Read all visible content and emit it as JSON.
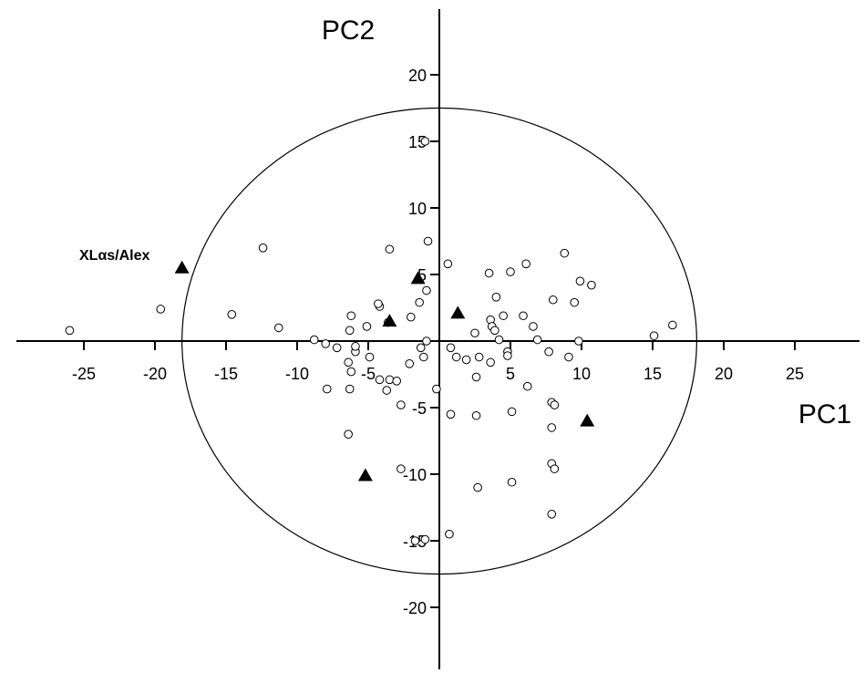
{
  "chart_data": {
    "type": "scatter",
    "xlabel": "PC1",
    "ylabel": "PC2",
    "xlim": [
      -30,
      30
    ],
    "ylim": [
      -25,
      25
    ],
    "x_ticks": [
      -25,
      -20,
      -15,
      -10,
      -5,
      0,
      5,
      10,
      15,
      20,
      25
    ],
    "y_ticks": [
      -20,
      -15,
      -10,
      -5,
      0,
      5,
      10,
      15,
      20
    ],
    "x_tick_labels": [
      "-25",
      "-20",
      "-15",
      "-10",
      "-5",
      "",
      "5",
      "10",
      "15",
      "20",
      "25"
    ],
    "y_tick_labels": [
      "-20",
      "-15",
      "-10",
      "-5",
      "",
      "5",
      "10",
      "15",
      "20"
    ],
    "confidence_ellipse": {
      "center": [
        0,
        0
      ],
      "rx": 18.1,
      "ry": 17.5
    },
    "series": [
      {
        "marker": "open-circle",
        "points": [
          [
            -26.0,
            0.8
          ],
          [
            -19.6,
            2.4
          ],
          [
            -14.6,
            2.0
          ],
          [
            -12.4,
            7.0
          ],
          [
            -11.3,
            1.0
          ],
          [
            -8.8,
            0.1
          ],
          [
            -8.0,
            -0.2
          ],
          [
            -7.2,
            -0.5
          ],
          [
            -6.3,
            0.8
          ],
          [
            -6.2,
            1.9
          ],
          [
            -5.9,
            -0.8
          ],
          [
            -5.1,
            1.1
          ],
          [
            -4.9,
            -1.2
          ],
          [
            -5.9,
            -0.4
          ],
          [
            -6.4,
            -1.6
          ],
          [
            -6.2,
            -2.3
          ],
          [
            -4.2,
            2.6
          ],
          [
            -4.3,
            2.8
          ],
          [
            -3.6,
            1.4
          ],
          [
            -4.2,
            -2.9
          ],
          [
            -3.5,
            -2.9
          ],
          [
            -3.7,
            -3.7
          ],
          [
            -3.0,
            -3.0
          ],
          [
            -2.7,
            -4.8
          ],
          [
            -2.1,
            -1.7
          ],
          [
            -2.0,
            1.8
          ],
          [
            -1.4,
            2.9
          ],
          [
            -1.3,
            -0.5
          ],
          [
            -1.1,
            -1.2
          ],
          [
            -0.9,
            0.0
          ],
          [
            -0.9,
            3.8
          ],
          [
            -0.8,
            7.5
          ],
          [
            -3.5,
            6.9
          ],
          [
            -1.0,
            15.0
          ],
          [
            -6.3,
            -3.6
          ],
          [
            -7.9,
            -3.6
          ],
          [
            -0.2,
            -3.6
          ],
          [
            0.6,
            5.8
          ],
          [
            0.8,
            -0.5
          ],
          [
            1.9,
            -1.4
          ],
          [
            2.5,
            0.6
          ],
          [
            2.6,
            -2.7
          ],
          [
            2.8,
            -1.2
          ],
          [
            2.6,
            -5.6
          ],
          [
            3.5,
            5.1
          ],
          [
            3.6,
            1.6
          ],
          [
            3.7,
            1.1
          ],
          [
            3.9,
            0.8
          ],
          [
            3.6,
            -1.6
          ],
          [
            4.0,
            3.3
          ],
          [
            4.2,
            0.1
          ],
          [
            4.5,
            1.9
          ],
          [
            4.8,
            -0.8
          ],
          [
            4.8,
            -1.1
          ],
          [
            5.0,
            5.2
          ],
          [
            5.1,
            -5.3
          ],
          [
            5.9,
            1.9
          ],
          [
            6.1,
            5.8
          ],
          [
            6.2,
            -3.4
          ],
          [
            6.6,
            1.1
          ],
          [
            6.9,
            0.1
          ],
          [
            7.7,
            -0.8
          ],
          [
            7.9,
            -4.6
          ],
          [
            8.0,
            3.1
          ],
          [
            8.1,
            -4.8
          ],
          [
            7.9,
            -6.5
          ],
          [
            8.8,
            6.6
          ],
          [
            9.1,
            -1.2
          ],
          [
            9.5,
            2.9
          ],
          [
            9.8,
            0.0
          ],
          [
            9.9,
            4.5
          ],
          [
            10.7,
            4.2
          ],
          [
            15.1,
            0.4
          ],
          [
            16.4,
            1.2
          ],
          [
            0.8,
            -5.5
          ],
          [
            1.2,
            -1.2
          ],
          [
            -6.4,
            -7.0
          ],
          [
            -2.7,
            -9.6
          ],
          [
            -1.0,
            -14.9
          ],
          [
            0.7,
            -14.5
          ],
          [
            2.7,
            -11.0
          ],
          [
            5.1,
            -10.6
          ],
          [
            7.9,
            -9.2
          ],
          [
            8.1,
            -9.6
          ],
          [
            7.9,
            -13.0
          ],
          [
            -1.7,
            -15.0
          ]
        ]
      },
      {
        "marker": "filled-triangle",
        "points": [
          [
            -18.1,
            5.5
          ],
          [
            -1.5,
            4.7
          ],
          [
            -3.5,
            1.5
          ],
          [
            1.3,
            2.1
          ],
          [
            -5.2,
            -10.1
          ],
          [
            10.4,
            -6.0
          ]
        ]
      }
    ],
    "annotations": [
      {
        "text": "XLαs/Alex",
        "x": -23.6,
        "y": 6.0
      }
    ],
    "grid": false,
    "legend": "none"
  }
}
